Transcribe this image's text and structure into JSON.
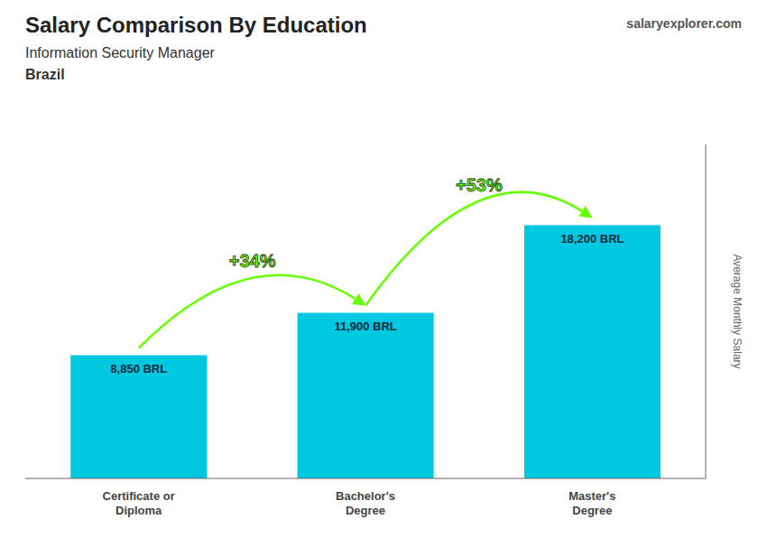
{
  "chart_data": {
    "type": "bar",
    "title": "Salary Comparison By Education",
    "subtitle": "Information Security Manager",
    "ylabel": "Average Monthly Salary",
    "categories": [
      "Certificate or\nDiploma",
      "Bachelor's\nDegree",
      "Master's\nDegree"
    ],
    "values": [
      8850,
      11900,
      18200
    ],
    "value_labels": [
      "8,850 BRL",
      "11,900 BRL",
      "18,200 BRL"
    ],
    "data_labels": true,
    "color": "#00c8e0",
    "ylim": [
      0,
      24000
    ],
    "tick_labels": "x",
    "grid": false,
    "annotations": [
      {
        "text": "Brazil"
      },
      {
        "text": "salaryexplorer.com"
      },
      {
        "text": "+34%",
        "from": "Certificate or\nDiploma",
        "to": "Bachelor's\nDegree",
        "color": "#66ff00"
      },
      {
        "text": "+53%",
        "from": "Bachelor's\nDegree",
        "to": "Master's\nDegree",
        "color": "#66ff00"
      }
    ]
  }
}
